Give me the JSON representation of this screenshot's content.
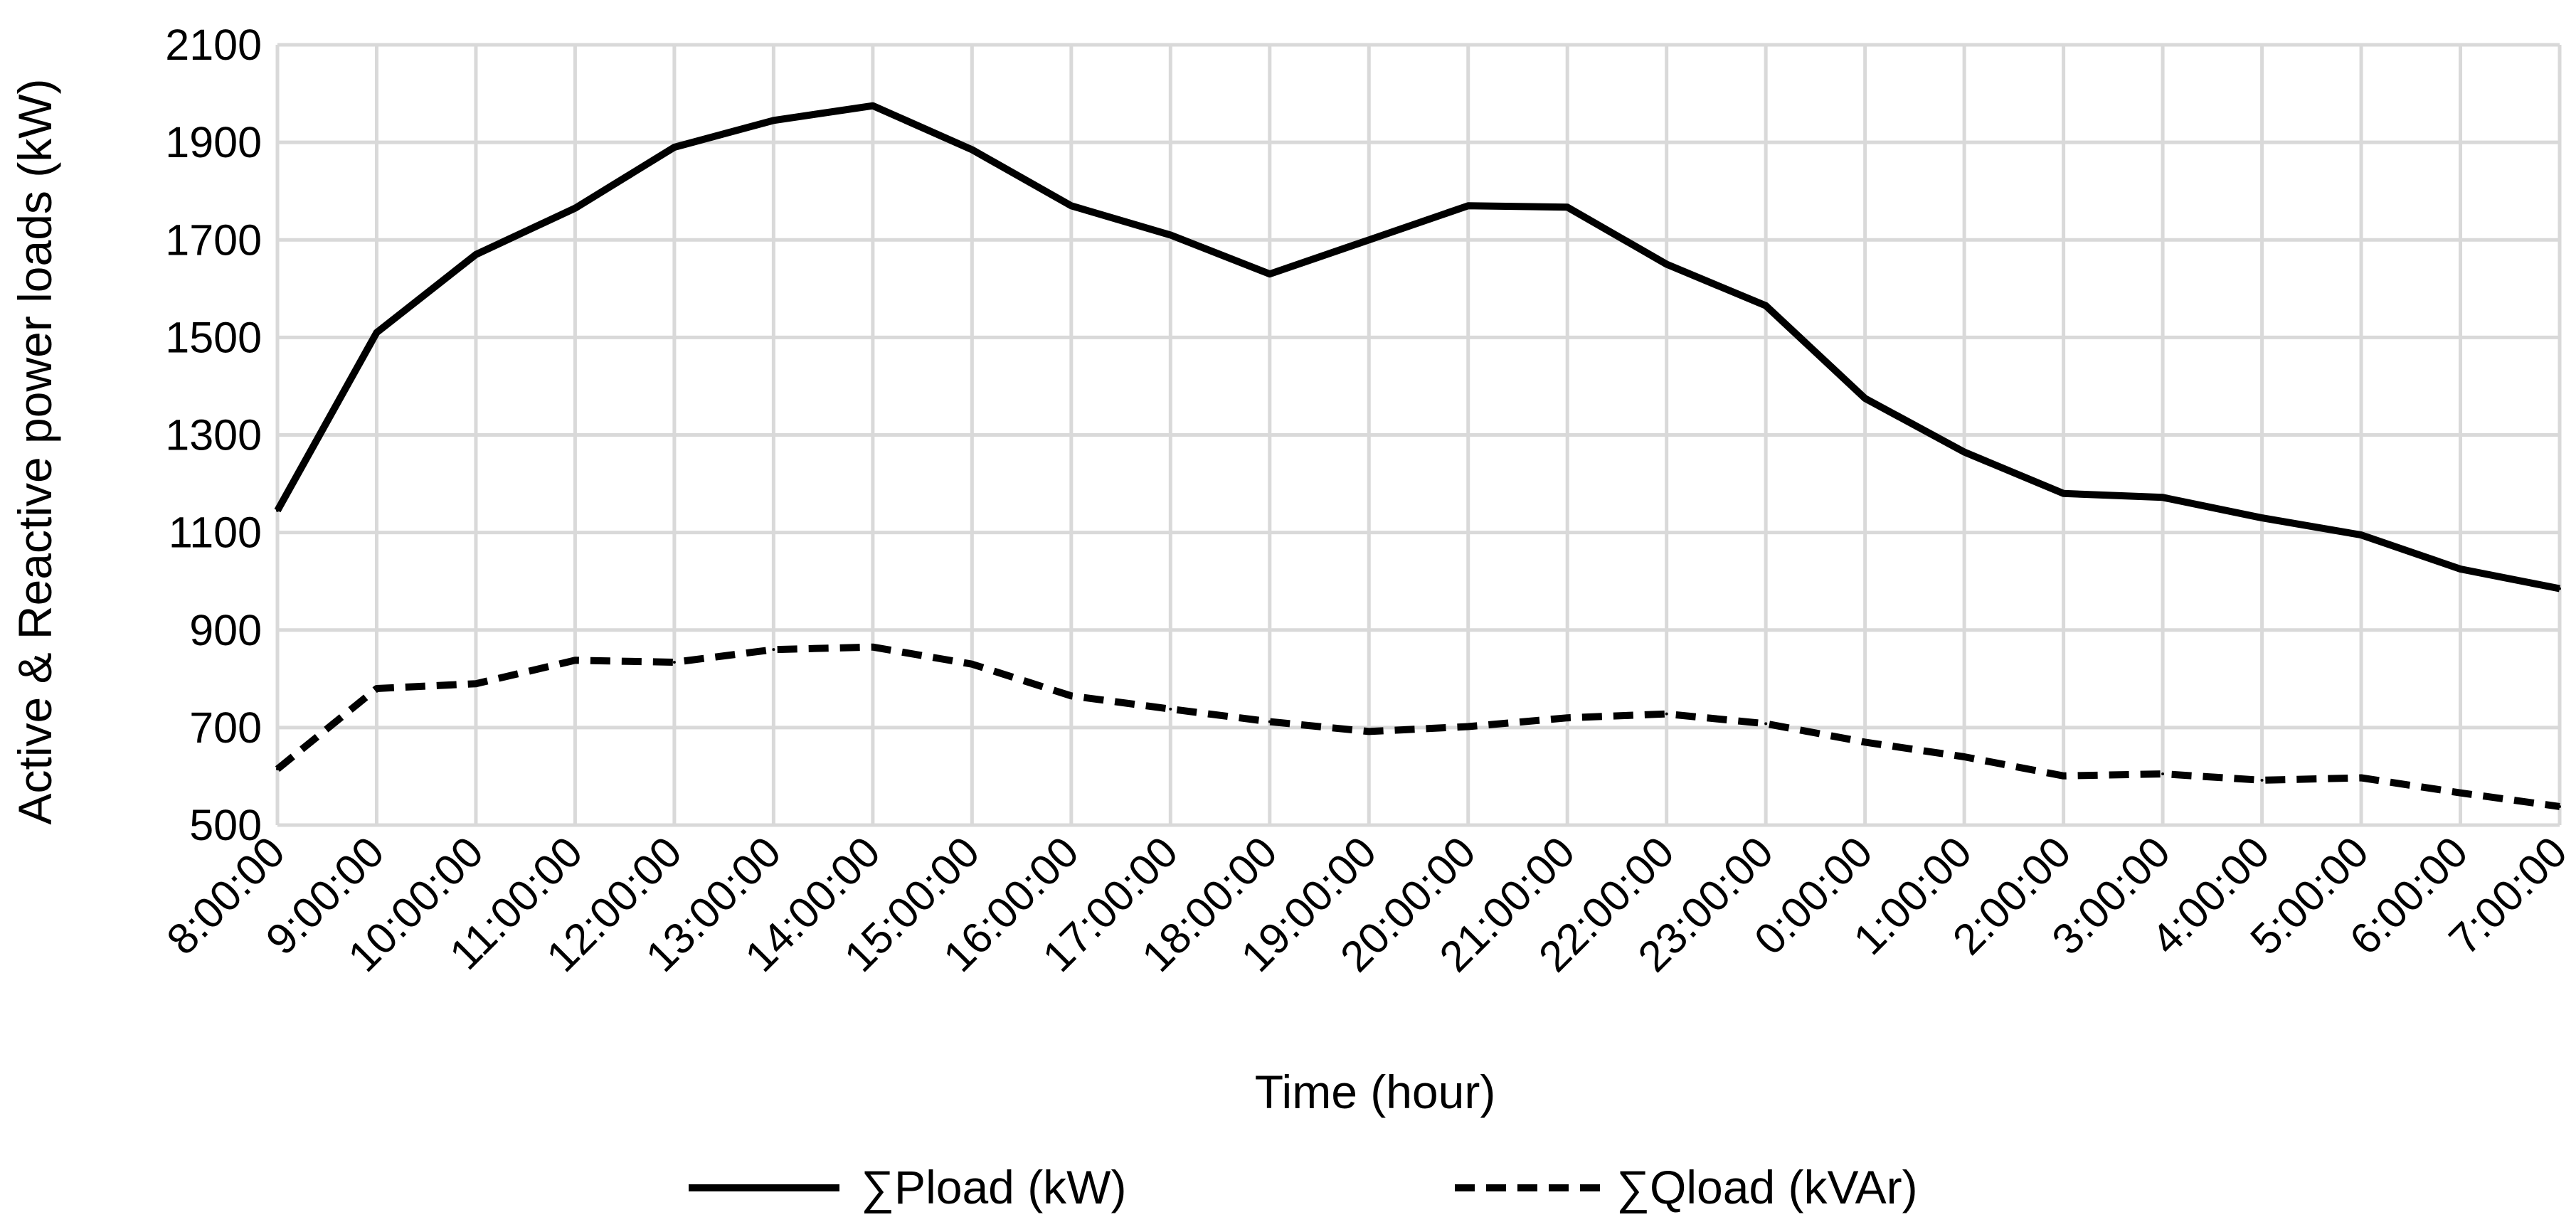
{
  "chart_data": {
    "type": "line",
    "title": "",
    "xlabel": "Time (hour)",
    "ylabel": "Active & Reactive power loads (kW)",
    "ylim": [
      500,
      2100
    ],
    "yticks": [
      "500",
      "700",
      "900",
      "1100",
      "1300",
      "1500",
      "1700",
      "1900",
      "2100"
    ],
    "grid": true,
    "legend_position": "bottom",
    "categories": [
      "8:00:00",
      "9:00:00",
      "10:00:00",
      "11:00:00",
      "12:00:00",
      "13:00:00",
      "14:00:00",
      "15:00:00",
      "16:00:00",
      "17:00:00",
      "18:00:00",
      "19:00:00",
      "20:00:00",
      "21:00:00",
      "22:00:00",
      "23:00:00",
      "0:00:00",
      "1:00:00",
      "2:00:00",
      "3:00:00",
      "4:00:00",
      "5:00:00",
      "6:00:00",
      "7:00:00"
    ],
    "series": [
      {
        "name": "∑Pload (kW)",
        "style": "solid",
        "color": "#000000",
        "values": [
          1145,
          1510,
          1670,
          1765,
          1890,
          1945,
          1975,
          1885,
          1770,
          1710,
          1630,
          1700,
          1770,
          1767,
          1650,
          1565,
          1375,
          1265,
          1180,
          1172,
          1130,
          1095,
          1025,
          985
        ]
      },
      {
        "name": "∑Qload (kVAr)",
        "style": "dashed",
        "color": "#000000",
        "values": [
          615,
          780,
          790,
          838,
          834,
          860,
          865,
          830,
          765,
          738,
          712,
          692,
          702,
          720,
          728,
          708,
          670,
          640,
          601,
          605,
          592,
          597,
          566,
          538
        ]
      }
    ]
  }
}
